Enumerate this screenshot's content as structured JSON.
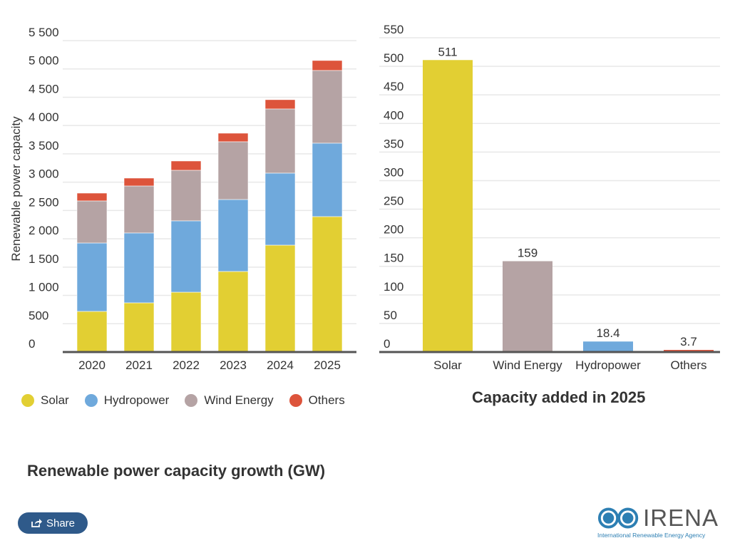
{
  "chart_data": [
    {
      "type": "bar",
      "stacked": true,
      "title": "Renewable power capacity growth (GW)",
      "ylabel": "Renewable power capacity",
      "xlabel": "",
      "categories": [
        "2020",
        "2021",
        "2022",
        "2023",
        "2024",
        "2025"
      ],
      "ylim": [
        0,
        5500
      ],
      "yticks": [
        0,
        500,
        1000,
        1500,
        2000,
        2500,
        3000,
        3500,
        4000,
        4500,
        5000,
        5500
      ],
      "ytick_labels": [
        "0",
        "500",
        "1 000",
        "1 500",
        "2 000",
        "2 500",
        "3 000",
        "3 500",
        "4 000",
        "4 500",
        "5 000",
        "5 500"
      ],
      "grid": true,
      "legend_position": "bottom",
      "series": [
        {
          "name": "Solar",
          "color": "#e2cf33",
          "values": [
            718,
            869,
            1057,
            1423,
            1888,
            2392
          ]
        },
        {
          "name": "Hydropower",
          "color": "#6fa9dc",
          "values": [
            1208,
            1234,
            1260,
            1271,
            1272,
            1297
          ]
        },
        {
          "name": "Wind Energy",
          "color": "#b5a3a4",
          "values": [
            743,
            830,
            893,
            1020,
            1133,
            1284
          ]
        },
        {
          "name": "Others",
          "color": "#dd543b",
          "values": [
            138,
            139,
            164,
            151,
            164,
            176
          ]
        }
      ]
    },
    {
      "type": "bar",
      "title": "Capacity added in 2025",
      "xlabel": "",
      "ylabel": "",
      "categories": [
        "Solar",
        "Wind Energy",
        "Hydropower",
        "Others"
      ],
      "values": [
        511,
        159,
        18.4,
        3.7
      ],
      "data_labels": [
        "511",
        "159",
        "18.4",
        "3.7"
      ],
      "colors": [
        "#e2cf33",
        "#b5a3a4",
        "#6fa9dc",
        "#dd543b"
      ],
      "ylim": [
        0,
        550
      ],
      "yticks": [
        0,
        50,
        100,
        150,
        200,
        250,
        300,
        350,
        400,
        450,
        500,
        550
      ],
      "grid": true
    }
  ],
  "share": {
    "label": "Share",
    "icon": "share-icon"
  },
  "logo": {
    "name": "IRENA",
    "subtitle": "International Renewable Energy Agency"
  }
}
